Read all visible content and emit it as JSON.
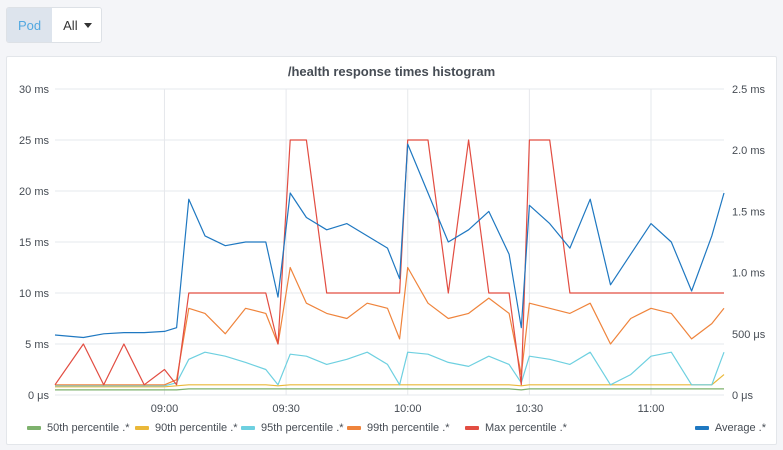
{
  "variable": {
    "label": "Pod",
    "value": "All"
  },
  "panel": {
    "title": "/health response times histogram"
  },
  "chart_data": {
    "type": "line",
    "title": "/health response times histogram",
    "x_ticks": [
      "09:00",
      "09:30",
      "10:00",
      "10:30",
      "11:00"
    ],
    "x": [
      "08:33",
      "08:40",
      "08:45",
      "08:50",
      "08:55",
      "09:00",
      "09:03",
      "09:06",
      "09:10",
      "09:15",
      "09:20",
      "09:25",
      "09:28",
      "09:31",
      "09:35",
      "09:40",
      "09:45",
      "09:50",
      "09:55",
      "09:58",
      "10:00",
      "10:05",
      "10:10",
      "10:15",
      "10:20",
      "10:25",
      "10:28",
      "10:30",
      "10:35",
      "10:40",
      "10:45",
      "10:50",
      "10:55",
      "11:00",
      "11:05",
      "11:10",
      "11:15",
      "11:18"
    ],
    "y_left": {
      "ticks": [
        "0 μs",
        "5 ms",
        "10 ms",
        "15 ms",
        "20 ms",
        "25 ms",
        "30 ms"
      ],
      "min": 0,
      "max": 30,
      "unit": "ms"
    },
    "y_right": {
      "ticks": [
        "0 μs",
        "500 μs",
        "1.0 ms",
        "1.5 ms",
        "2.0 ms",
        "2.5 ms"
      ],
      "min": 0,
      "max": 2.5,
      "unit": "ms"
    },
    "grid": true,
    "legend_position": "bottom",
    "series": [
      {
        "name": "50th percentile .*",
        "color": "#7eb26d",
        "axis": "left",
        "values": [
          0.5,
          0.5,
          0.5,
          0.5,
          0.5,
          0.5,
          0.5,
          0.6,
          0.6,
          0.6,
          0.6,
          0.6,
          0.6,
          0.6,
          0.6,
          0.6,
          0.6,
          0.6,
          0.6,
          0.6,
          0.6,
          0.6,
          0.6,
          0.6,
          0.6,
          0.6,
          0.5,
          0.6,
          0.6,
          0.6,
          0.6,
          0.6,
          0.6,
          0.6,
          0.6,
          0.6,
          0.6,
          0.6
        ]
      },
      {
        "name": "90th percentile .*",
        "color": "#eab839",
        "axis": "left",
        "values": [
          0.8,
          0.8,
          0.8,
          0.8,
          0.8,
          0.8,
          0.9,
          1.0,
          1.0,
          1.0,
          1.0,
          1.0,
          0.9,
          1.0,
          1.0,
          1.0,
          1.0,
          1.0,
          1.0,
          1.0,
          1.0,
          1.0,
          1.0,
          1.0,
          1.0,
          1.0,
          0.9,
          1.0,
          1.0,
          1.0,
          1.0,
          1.0,
          1.0,
          1.0,
          1.0,
          1.0,
          1.0,
          2.0
        ]
      },
      {
        "name": "95th percentile .*",
        "color": "#6ed0e0",
        "axis": "left",
        "values": [
          0.9,
          0.9,
          0.9,
          0.9,
          0.9,
          0.9,
          1.2,
          3.5,
          4.2,
          3.8,
          3.2,
          2.5,
          1.0,
          4.0,
          3.8,
          3.0,
          3.5,
          4.2,
          3.0,
          1.0,
          4.2,
          4.0,
          3.2,
          2.8,
          3.8,
          3.0,
          1.2,
          3.8,
          3.5,
          3.0,
          4.2,
          1.0,
          2.0,
          3.8,
          4.2,
          1.0,
          1.0,
          4.2
        ]
      },
      {
        "name": "99th percentile .*",
        "color": "#ef843c",
        "axis": "left",
        "values": [
          1.0,
          1.0,
          1.0,
          1.0,
          1.0,
          1.0,
          1.5,
          8.5,
          8.0,
          6.0,
          8.5,
          8.0,
          5.0,
          12.5,
          9.0,
          8.0,
          7.5,
          9.0,
          8.5,
          5.5,
          12.5,
          9.0,
          7.5,
          8.0,
          9.5,
          8.0,
          2.0,
          9.0,
          8.5,
          8.0,
          9.0,
          5.0,
          7.5,
          8.5,
          8.0,
          5.5,
          7.0,
          8.5
        ]
      },
      {
        "name": "Max percentile .*",
        "color": "#e24d42",
        "axis": "left",
        "values": [
          1.0,
          5.0,
          1.0,
          5.0,
          1.0,
          2.5,
          1.0,
          10.0,
          10.0,
          10.0,
          10.0,
          10.0,
          5.0,
          25.0,
          25.0,
          10.0,
          10.0,
          10.0,
          10.0,
          10.0,
          25.0,
          25.0,
          10.0,
          25.0,
          10.0,
          10.0,
          1.0,
          25.0,
          25.0,
          10.0,
          10.0,
          10.0,
          10.0,
          10.0,
          10.0,
          10.0,
          10.0,
          10.0
        ]
      },
      {
        "name": "Average .*",
        "color": "#1f78c1",
        "axis": "right",
        "values": [
          0.49,
          0.47,
          0.5,
          0.51,
          0.51,
          0.52,
          0.55,
          1.6,
          1.3,
          1.22,
          1.25,
          1.25,
          0.8,
          1.65,
          1.45,
          1.35,
          1.4,
          1.3,
          1.2,
          0.95,
          2.05,
          1.65,
          1.25,
          1.35,
          1.5,
          1.15,
          0.55,
          1.55,
          1.4,
          1.2,
          1.6,
          0.9,
          1.15,
          1.4,
          1.25,
          0.85,
          1.3,
          1.65
        ]
      }
    ]
  }
}
